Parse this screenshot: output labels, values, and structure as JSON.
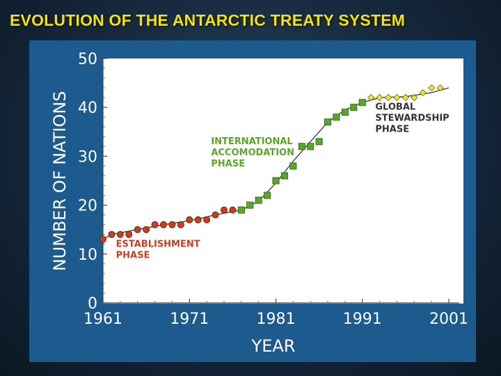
{
  "slide": {
    "title": "EVOLUTION OF THE ANTARCTIC TREATY SYSTEM",
    "colors": {
      "title": "#f4e400",
      "panel": "#1d5a8e",
      "plot_bg": "#ffffff",
      "trend_line": "#333333"
    }
  },
  "chart_data": {
    "type": "scatter",
    "title": "",
    "xlabel": "YEAR",
    "ylabel": "NUMBER OF NATIONS",
    "xlim": [
      1961,
      2001
    ],
    "ylim": [
      0,
      50
    ],
    "x_ticks": [
      "1961",
      "1971",
      "1981",
      "1991",
      "2001"
    ],
    "y_ticks": [
      "0",
      "10",
      "20",
      "30",
      "40",
      "50"
    ],
    "grid": false,
    "series": [
      {
        "name": "ESTABLISHMENT PHASE",
        "marker": "circle",
        "color": "#c8401a",
        "x": [
          1961,
          1962,
          1963,
          1964,
          1965,
          1966,
          1967,
          1968,
          1969,
          1970,
          1971,
          1972,
          1973,
          1974,
          1975,
          1976,
          1977
        ],
        "y": [
          13,
          14,
          14,
          14,
          15,
          15,
          16,
          16,
          16,
          16,
          17,
          17,
          17,
          18,
          19,
          19,
          19
        ]
      },
      {
        "name": "INTERNATIONAL ACCOMODATION PHASE",
        "marker": "square",
        "color": "#5aa62a",
        "x": [
          1977,
          1978,
          1979,
          1980,
          1981,
          1982,
          1983,
          1984,
          1985,
          1986,
          1987,
          1988,
          1989,
          1990,
          1991
        ],
        "y": [
          19,
          20,
          21,
          22,
          25,
          26,
          28,
          32,
          32,
          33,
          37,
          38,
          39,
          40,
          41
        ]
      },
      {
        "name": "GLOBAL STEWARDSHIP PHASE",
        "marker": "diamond",
        "color": "#e6e63a",
        "x": [
          1992,
          1993,
          1994,
          1995,
          1996,
          1997,
          1998,
          1999,
          2000
        ],
        "y": [
          42,
          42,
          42,
          42,
          42,
          42,
          43,
          44,
          44
        ]
      }
    ],
    "annotations": [
      {
        "text": [
          "ESTABLISHMENT",
          "PHASE"
        ],
        "color": "#c8401a",
        "at": [
          1962.5,
          11.5
        ]
      },
      {
        "text": [
          "INTERNATIONAL",
          "ACCOMODATION",
          "PHASE"
        ],
        "color": "#5aa62a",
        "at": [
          1973.5,
          32.5
        ]
      },
      {
        "text": [
          "GLOBAL",
          "STEWARDSHIP",
          "PHASE"
        ],
        "color": "#333333",
        "at": [
          1992.5,
          39.5
        ]
      }
    ],
    "trend_line": {
      "x": [
        1961,
        1962,
        1965,
        1968,
        1971,
        1974,
        1977,
        1979,
        1981,
        1983,
        1985,
        1987,
        1989,
        1991,
        1993,
        1996,
        1999,
        2001
      ],
      "y": [
        13,
        14,
        15,
        16,
        16.8,
        18,
        19,
        20.8,
        24.5,
        29,
        33,
        37,
        39.5,
        41,
        42,
        42.2,
        43,
        44
      ]
    }
  }
}
